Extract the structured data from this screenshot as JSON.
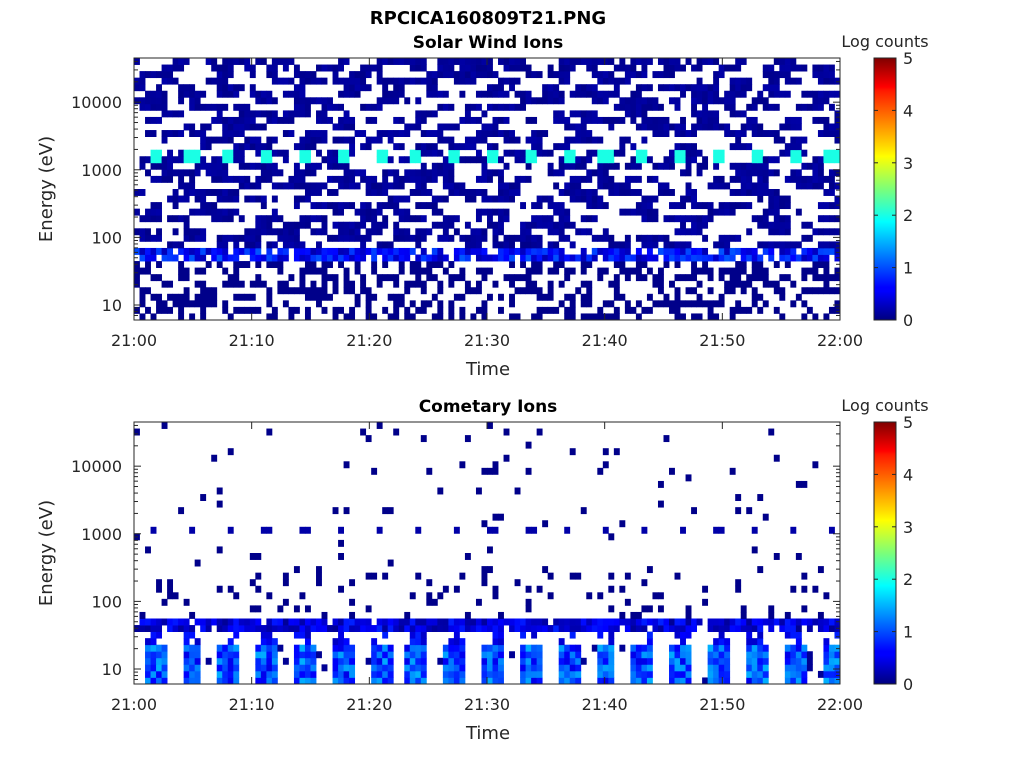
{
  "figure_title": "RPCICA160809T21.PNG",
  "chart_data": [
    {
      "type": "heatmap",
      "title": "Solar Wind Ions",
      "xlabel": "Time",
      "ylabel": "Energy (eV)",
      "x_ticks": [
        "21:00",
        "21:10",
        "21:20",
        "21:30",
        "21:40",
        "21:50",
        "22:00"
      ],
      "x_range_minutes": [
        0,
        60
      ],
      "y_ticks": [
        "10",
        "100",
        "1000",
        "10000"
      ],
      "y_scale": "log",
      "ylim": [
        6,
        45000
      ],
      "colorbar": {
        "label": "Log counts",
        "ticks": [
          "0",
          "1",
          "2",
          "3",
          "4",
          "5"
        ],
        "range": [
          0,
          5
        ],
        "colormap": "jet"
      },
      "features": [
        {
          "energy_ev": 1500,
          "log_counts": 2.0,
          "note": "periodic peaks"
        },
        {
          "energy_ev": 55,
          "log_counts": 1.0
        }
      ]
    },
    {
      "type": "heatmap",
      "title": "Cometary Ions",
      "xlabel": "Time",
      "ylabel": "Energy (eV)",
      "x_ticks": [
        "21:00",
        "21:10",
        "21:20",
        "21:30",
        "21:40",
        "21:50",
        "22:00"
      ],
      "x_range_minutes": [
        0,
        60
      ],
      "y_ticks": [
        "10",
        "100",
        "1000",
        "10000"
      ],
      "y_scale": "log",
      "ylim": [
        6,
        45000
      ],
      "colorbar": {
        "label": "Log counts",
        "ticks": [
          "0",
          "1",
          "2",
          "3",
          "4",
          "5"
        ],
        "range": [
          0,
          5
        ],
        "colormap": "jet"
      },
      "features": [
        {
          "energy_ev": 10,
          "log_counts": 1.4,
          "note": "periodic low-energy blocks"
        },
        {
          "energy_ev": 45,
          "log_counts": 0.8
        },
        {
          "energy_ev": 1100,
          "log_counts": 0.3
        }
      ]
    }
  ],
  "colors": {
    "white": "#ffffff",
    "axis": "#262626"
  }
}
